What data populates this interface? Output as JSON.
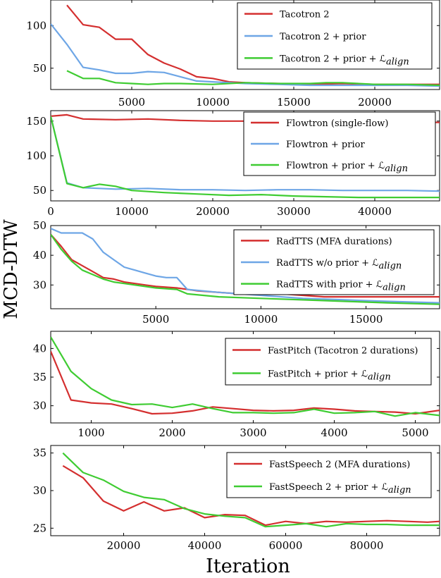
{
  "figure": {
    "ylabel": "MCD-DTW",
    "xlabel": "Iteration"
  },
  "colors": {
    "red": "#d42f2f",
    "blue": "#6ea6e6",
    "green": "#3fcc32"
  },
  "chart_data": [
    {
      "type": "line",
      "xlim": [
        0,
        24000
      ],
      "ylim": [
        25,
        130
      ],
      "x_ticks": [
        5000,
        10000,
        15000,
        20000
      ],
      "y_ticks": [
        50,
        100
      ],
      "legend_position": "top-right",
      "series": [
        {
          "name": "Tacotron 2",
          "color": "red",
          "x": [
            1000,
            2000,
            3000,
            4000,
            5000,
            6000,
            7000,
            8000,
            9000,
            10000,
            11000,
            12000,
            14000,
            16000,
            18000,
            20000,
            22000,
            24000
          ],
          "y": [
            124,
            101,
            98,
            84,
            84,
            66,
            56,
            49,
            40,
            38,
            34,
            33,
            32,
            31,
            32,
            31,
            31,
            31
          ]
        },
        {
          "name": "Tacotron 2 + prior",
          "color": "blue",
          "x": [
            0,
            1000,
            2000,
            3000,
            4000,
            5000,
            6000,
            7000,
            8000,
            9000,
            10000,
            12000,
            14000,
            16000,
            18000,
            20000,
            22000,
            24000
          ],
          "y": [
            102,
            78,
            51,
            48,
            44,
            44,
            46,
            45,
            40,
            35,
            34,
            32,
            31,
            30,
            30,
            30,
            30,
            29
          ]
        },
        {
          "name": "Tacotron 2 + prior + ℒ",
          "subscript": "align",
          "color": "green",
          "x": [
            1000,
            2000,
            3000,
            4000,
            5000,
            6000,
            7000,
            8000,
            10000,
            12000,
            14000,
            16000,
            17000,
            18000,
            20000,
            22000,
            24000
          ],
          "y": [
            47,
            38,
            38,
            33,
            32,
            31,
            32,
            32,
            31,
            33,
            32,
            32,
            33,
            33,
            31,
            31,
            30
          ]
        }
      ]
    },
    {
      "type": "line",
      "xlim": [
        0,
        48000
      ],
      "ylim": [
        35,
        165
      ],
      "x_ticks": [
        0,
        10000,
        20000,
        30000,
        40000
      ],
      "y_ticks": [
        50,
        100,
        150
      ],
      "legend_position": "top-right",
      "series": [
        {
          "name": "Flowtron (single-flow)",
          "color": "red",
          "x": [
            0,
            2000,
            4000,
            8000,
            12000,
            16000,
            20000,
            24000,
            28000,
            32000,
            36000,
            40000,
            44000,
            48000
          ],
          "y": [
            157,
            159,
            153,
            152,
            153,
            151,
            150,
            150,
            150,
            150,
            150,
            150,
            149,
            148
          ]
        },
        {
          "name": "Flowtron + prior",
          "color": "blue",
          "x": [
            0,
            2000,
            4000,
            8000,
            12000,
            16000,
            20000,
            24000,
            28000,
            32000,
            36000,
            40000,
            44000,
            48000
          ],
          "y": [
            157,
            61,
            54,
            52,
            53,
            51,
            51,
            50,
            51,
            51,
            50,
            50,
            50,
            49
          ]
        },
        {
          "name": "Flowtron + prior + ℒ",
          "subscript": "align",
          "color": "green",
          "x": [
            0,
            2000,
            4000,
            6000,
            8000,
            10000,
            14000,
            18000,
            22000,
            26000,
            30000,
            34000,
            38000,
            42000,
            46000,
            48000
          ],
          "y": [
            157,
            60,
            54,
            59,
            56,
            50,
            47,
            45,
            43,
            44,
            42,
            41,
            40,
            40,
            40,
            40
          ]
        }
      ]
    },
    {
      "type": "line",
      "xlim": [
        0,
        18500
      ],
      "ylim": [
        22,
        50
      ],
      "x_ticks": [
        5000,
        10000,
        15000
      ],
      "y_ticks": [
        30,
        40,
        50
      ],
      "legend_position": "top-right",
      "series": [
        {
          "name": "RadTTS (MFA durations)",
          "color": "red",
          "x": [
            0,
            500,
            1000,
            1500,
            2000,
            2500,
            3000,
            3500,
            4000,
            4500,
            5000,
            6000,
            7000,
            9000,
            11000,
            13000,
            15000,
            17000,
            18500
          ],
          "y": [
            47,
            43,
            38.5,
            36.5,
            34.5,
            32.5,
            32,
            31,
            30.5,
            30,
            29.5,
            29,
            28,
            27,
            27,
            26,
            26,
            26,
            26
          ]
        },
        {
          "name": "RadTTS w/o prior + ℒ",
          "subscript": "align",
          "color": "blue",
          "x": [
            0,
            500,
            1000,
            1500,
            2000,
            2500,
            3000,
            3500,
            4000,
            4500,
            5000,
            5500,
            6000,
            6500,
            8000,
            10000,
            12000,
            14000,
            16000,
            18500
          ],
          "y": [
            49,
            47.5,
            47.5,
            47.5,
            45.5,
            41,
            38.5,
            36,
            35,
            34,
            33,
            32.5,
            32.5,
            28.5,
            27.5,
            26.5,
            25.5,
            25,
            24.5,
            24
          ]
        },
        {
          "name": "RadTTS with prior + ℒ",
          "subscript": "align",
          "color": "green",
          "x": [
            0,
            500,
            1000,
            1500,
            2000,
            2500,
            3000,
            3500,
            4000,
            4500,
            5000,
            6000,
            6500,
            8000,
            10000,
            12000,
            14000,
            16000,
            18500
          ],
          "y": [
            47,
            42,
            38,
            35,
            33.5,
            32,
            31,
            30.5,
            30,
            29.5,
            29,
            28.5,
            27,
            26,
            25.5,
            25,
            24.5,
            24,
            23.5
          ]
        }
      ]
    },
    {
      "type": "line",
      "xlim": [
        500,
        5300
      ],
      "ylim": [
        27,
        43
      ],
      "x_ticks": [
        1000,
        2000,
        3000,
        4000,
        5000
      ],
      "y_ticks": [
        30,
        35,
        40
      ],
      "legend_position": "top-right",
      "series": [
        {
          "name": "FastPitch (Tacotron 2 durations)",
          "color": "red",
          "x": [
            500,
            750,
            1000,
            1250,
            1500,
            1750,
            2000,
            2250,
            2500,
            2750,
            3000,
            3250,
            3500,
            3750,
            4000,
            4250,
            4500,
            4750,
            5000,
            5300
          ],
          "y": [
            39.5,
            31,
            30.5,
            30.3,
            29.5,
            28.6,
            28.7,
            29.1,
            29.8,
            29.5,
            29.2,
            29.1,
            29.2,
            29.6,
            29.4,
            29.1,
            29,
            28.9,
            28.6,
            29.2
          ]
        },
        {
          "name": "FastPitch + prior + ℒ",
          "subscript": "align",
          "color": "green",
          "x": [
            500,
            750,
            1000,
            1250,
            1500,
            1750,
            2000,
            2250,
            2500,
            2750,
            3000,
            3250,
            3500,
            3750,
            4000,
            4250,
            4500,
            4750,
            5000,
            5300
          ],
          "y": [
            42,
            36,
            33,
            31,
            30.2,
            30.3,
            29.7,
            30.3,
            29.5,
            28.8,
            28.8,
            28.7,
            28.8,
            29.4,
            28.7,
            28.8,
            29,
            28.2,
            28.8,
            28.3
          ]
        }
      ]
    },
    {
      "type": "line",
      "xlim": [
        2000,
        98000
      ],
      "ylim": [
        24,
        36
      ],
      "x_ticks": [
        20000,
        40000,
        60000,
        80000
      ],
      "y_ticks": [
        25,
        30,
        35
      ],
      "legend_position": "top-right",
      "series": [
        {
          "name": "FastSpeech 2 (MFA durations)",
          "color": "red",
          "x": [
            5000,
            10000,
            15000,
            20000,
            25000,
            30000,
            35000,
            40000,
            45000,
            50000,
            55000,
            60000,
            65000,
            70000,
            75000,
            80000,
            85000,
            90000,
            95000,
            98000
          ],
          "y": [
            33.3,
            31.7,
            28.6,
            27.3,
            28.5,
            27.3,
            27.7,
            26.4,
            26.8,
            26.7,
            25.4,
            25.9,
            25.6,
            25.9,
            25.8,
            25.9,
            26,
            25.9,
            25.8,
            25.9
          ]
        },
        {
          "name": "FastSpeech 2 + prior + ℒ",
          "subscript": "align",
          "color": "green",
          "x": [
            5000,
            10000,
            15000,
            20000,
            25000,
            30000,
            35000,
            40000,
            45000,
            50000,
            55000,
            60000,
            65000,
            70000,
            75000,
            80000,
            85000,
            90000,
            95000,
            98000
          ],
          "y": [
            35,
            32.4,
            31.4,
            29.9,
            29.1,
            28.8,
            27.6,
            26.9,
            26.6,
            26.4,
            25.2,
            25.4,
            25.6,
            25.2,
            25.6,
            25.5,
            25.5,
            25.4,
            25.4,
            25.4
          ]
        }
      ]
    }
  ]
}
